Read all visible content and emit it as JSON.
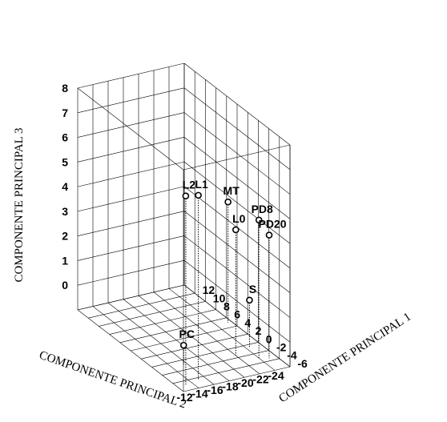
{
  "chart_data": {
    "type": "scatter",
    "projection": "3d",
    "title": "",
    "xlabel": "COMPONENTE PRINCIPAL 1",
    "ylabel": "COMPONENTE PRINCIPAL 2",
    "zlabel": "COMPONENTE PRINCIPAL 3",
    "xlim": [
      -7,
      13
    ],
    "ylim": [
      -25,
      -11
    ],
    "zlim": [
      -1,
      8
    ],
    "x_ticks": [
      "12",
      "10",
      "8",
      "6",
      "4",
      "2",
      "0",
      "-2",
      "-4",
      "-6"
    ],
    "y_ticks": [
      "-12",
      "-14",
      "-16",
      "-18",
      "-20",
      "-22",
      "-24"
    ],
    "z_ticks": [
      "8",
      "7",
      "6",
      "5",
      "4",
      "3",
      "2",
      "1",
      "0"
    ],
    "grid": true,
    "points": [
      {
        "label": "L2",
        "x": -6.0,
        "y": -12.0,
        "z": 6.7
      },
      {
        "label": "L1",
        "x": -5.5,
        "y": -14.0,
        "z": 6.5
      },
      {
        "label": "PD8",
        "x": -4.0,
        "y": -23.0,
        "z": 4.6
      },
      {
        "label": "L0",
        "x": -2.5,
        "y": -21.0,
        "z": 4.1
      },
      {
        "label": "PD20",
        "x": -4.5,
        "y": -24.0,
        "z": 4.0
      },
      {
        "label": "MT",
        "x": 4.0,
        "y": -24.5,
        "z": 3.9
      },
      {
        "label": "S",
        "x": -1.5,
        "y": -23.5,
        "z": 0.9
      },
      {
        "label": "PC",
        "x": -2.0,
        "y": -14.5,
        "z": -0.2
      }
    ]
  }
}
